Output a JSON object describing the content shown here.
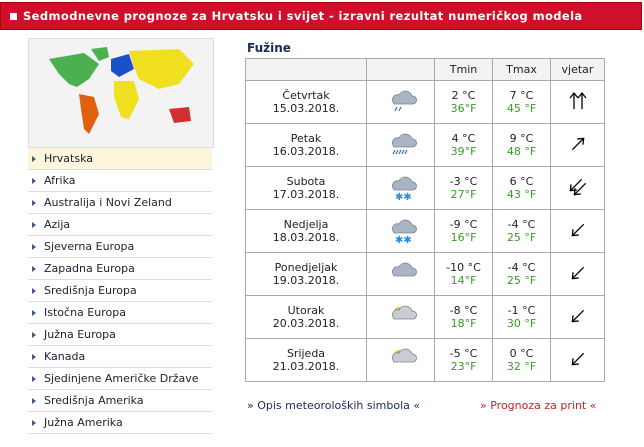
{
  "header": {
    "title": "Sedmodnevne prognoze za Hrvatsku i svijet - izravni rezultat numeričkog modela"
  },
  "menu": {
    "items": [
      "Hrvatska",
      "Afrika",
      "Australija i Novi Zeland",
      "Azija",
      "Sjeverna Europa",
      "Zapadna Europa",
      "Središnja Europa",
      "Istočna Europa",
      "Južna Europa",
      "Kanada",
      "Sjedinjene Američke Države",
      "Središnja Amerika",
      "Južna Amerika"
    ]
  },
  "location": "Fužine",
  "table": {
    "columns": [
      "Tmin",
      "Tmax",
      "vjetar"
    ],
    "rows": [
      {
        "day": "Četvrtak",
        "date": "15.03.2018.",
        "tmin_c": "2 °C",
        "tmin_f": "36°F",
        "tmax_c": "7 °C",
        "tmax_f": "45 °F"
      },
      {
        "day": "Petak",
        "date": "16.03.2018.",
        "tmin_c": "4 °C",
        "tmin_f": "39°F",
        "tmax_c": "9 °C",
        "tmax_f": "48 °F"
      },
      {
        "day": "Subota",
        "date": "17.03.2018.",
        "tmin_c": "-3 °C",
        "tmin_f": "27°F",
        "tmax_c": "6 °C",
        "tmax_f": "43 °F"
      },
      {
        "day": "Nedjelja",
        "date": "18.03.2018.",
        "tmin_c": "-9 °C",
        "tmin_f": "16°F",
        "tmax_c": "-4 °C",
        "tmax_f": "25 °F"
      },
      {
        "day": "Ponedjeljak",
        "date": "19.03.2018.",
        "tmin_c": "-10 °C",
        "tmin_f": "14°F",
        "tmax_c": "-4 °C",
        "tmax_f": "25 °F"
      },
      {
        "day": "Utorak",
        "date": "20.03.2018.",
        "tmin_c": "-8 °C",
        "tmin_f": "18°F",
        "tmax_c": "-1 °C",
        "tmax_f": "30 °F"
      },
      {
        "day": "Srijeda",
        "date": "21.03.2018.",
        "tmin_c": "-5 °C",
        "tmin_f": "23°F",
        "tmax_c": "0 °C",
        "tmax_f": "32 °F"
      }
    ]
  },
  "footer": {
    "links": [
      "» Opis meteoroloških simbola «",
      "» Prognoza za print «"
    ]
  }
}
